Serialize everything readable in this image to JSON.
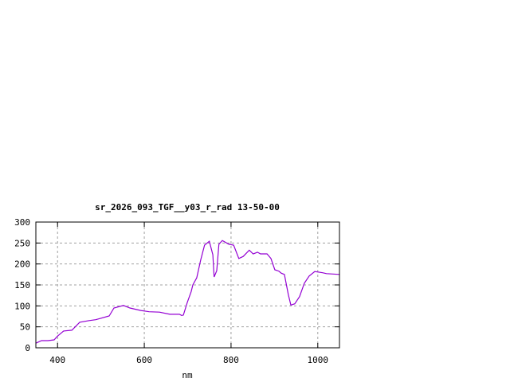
{
  "chart_data": {
    "type": "line",
    "title": "sr_2026_093_TGF__y03_r_rad 13-50-00",
    "xlabel": "nm",
    "ylabel": "",
    "xlim": [
      350,
      1050
    ],
    "ylim": [
      0,
      300
    ],
    "xticks": [
      400,
      600,
      800,
      1000
    ],
    "yticks": [
      0,
      50,
      100,
      150,
      200,
      250,
      300
    ],
    "grid": true,
    "line_color": "#9400d3",
    "series": [
      {
        "x": [
          350,
          363,
          378,
          392,
          400,
          405,
          414,
          433,
          451,
          473,
          488,
          519,
          530,
          552,
          567,
          592,
          611,
          635,
          659,
          681,
          686,
          690,
          699,
          708,
          712,
          721,
          730,
          739,
          750,
          758,
          761,
          767,
          772,
          780,
          795,
          806,
          818,
          828,
          842,
          851,
          861,
          868,
          883,
          892,
          901,
          910,
          916,
          923,
          932,
          938,
          947,
          958,
          969,
          980,
          993,
          1011,
          1020,
          1050
        ],
        "y": [
          11,
          17,
          17,
          19,
          28,
          32,
          40,
          42,
          61,
          65,
          67,
          76,
          95,
          101,
          95,
          89,
          86,
          85,
          80,
          80,
          77,
          78,
          108,
          134,
          150,
          167,
          209,
          245,
          254,
          222,
          169,
          184,
          247,
          256,
          247,
          245,
          213,
          218,
          233,
          224,
          228,
          224,
          224,
          213,
          186,
          183,
          178,
          175,
          127,
          102,
          105,
          122,
          154,
          171,
          182,
          179,
          177,
          175
        ]
      }
    ]
  }
}
